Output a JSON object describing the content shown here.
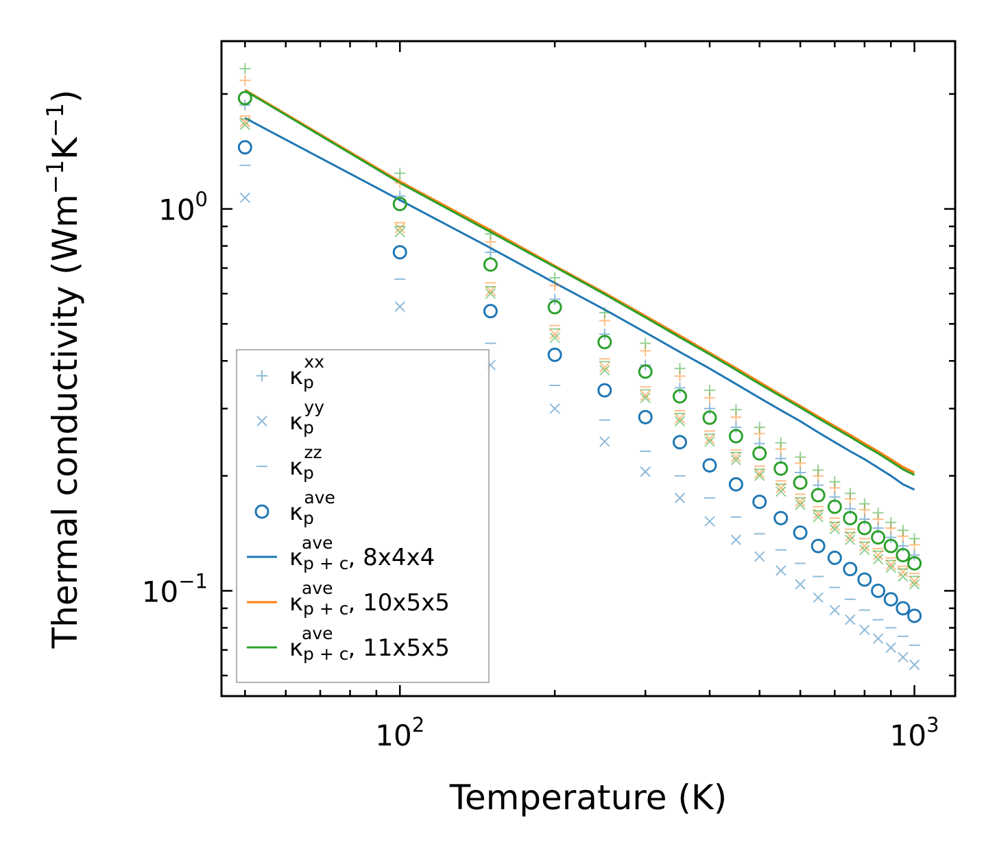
{
  "chart_data": {
    "type": "scatter",
    "xlabel": "Temperature (K)",
    "ylabel_parts": [
      "Thermal conductivity (Wm",
      "−1",
      "K",
      "−1",
      ")"
    ],
    "x_scale": "log",
    "y_scale": "log",
    "xlim": [
      45,
      1200
    ],
    "ylim": [
      0.053,
      2.75
    ],
    "x_ticks": [
      {
        "base": "10",
        "exp": "2",
        "value": 100
      },
      {
        "base": "10",
        "exp": "3",
        "value": 1000
      }
    ],
    "y_ticks": [
      {
        "base": "10",
        "exp": "0",
        "value": 1
      },
      {
        "base": "10",
        "exp": "−1",
        "value": 0.1
      }
    ],
    "legend_position": "lower-left",
    "x": [
      50,
      100,
      150,
      200,
      250,
      300,
      350,
      400,
      450,
      500,
      550,
      600,
      650,
      700,
      750,
      800,
      850,
      900,
      950,
      1000
    ],
    "colors": {
      "blue": "#1f77b4",
      "orange": "#ff7f0e",
      "green": "#2ca02c"
    },
    "marker_series": [
      {
        "name": "xx",
        "marker": "plus",
        "sup": "xx",
        "blue": [
          1.87,
          1.08,
          0.77,
          0.58,
          0.47,
          0.39,
          0.34,
          0.3,
          0.268,
          0.243,
          0.222,
          0.204,
          0.189,
          0.176,
          0.164,
          0.154,
          0.146,
          0.138,
          0.131,
          0.124
        ],
        "orange": [
          2.17,
          1.17,
          0.82,
          0.63,
          0.51,
          0.425,
          0.365,
          0.32,
          0.285,
          0.258,
          0.235,
          0.216,
          0.2,
          0.186,
          0.174,
          0.163,
          0.154,
          0.146,
          0.139,
          0.132
        ],
        "green": [
          2.33,
          1.24,
          0.86,
          0.66,
          0.535,
          0.445,
          0.382,
          0.335,
          0.298,
          0.268,
          0.244,
          0.224,
          0.207,
          0.193,
          0.18,
          0.169,
          0.16,
          0.151,
          0.144,
          0.137
        ]
      },
      {
        "name": "yy",
        "marker": "cross",
        "sup": "yy",
        "blue": [
          1.07,
          0.555,
          0.39,
          0.3,
          0.246,
          0.205,
          0.175,
          0.152,
          0.136,
          0.123,
          0.113,
          0.104,
          0.096,
          0.089,
          0.084,
          0.079,
          0.075,
          0.071,
          0.067,
          0.064
        ],
        "orange": [
          1.69,
          0.89,
          0.61,
          0.47,
          0.385,
          0.325,
          0.283,
          0.25,
          0.224,
          0.203,
          0.186,
          0.171,
          0.159,
          0.148,
          0.139,
          0.131,
          0.124,
          0.117,
          0.112,
          0.106
        ],
        "green": [
          1.66,
          0.87,
          0.6,
          0.46,
          0.378,
          0.32,
          0.278,
          0.246,
          0.22,
          0.2,
          0.182,
          0.168,
          0.156,
          0.145,
          0.136,
          0.128,
          0.121,
          0.115,
          0.109,
          0.104
        ]
      },
      {
        "name": "zz",
        "marker": "dash",
        "sup": "zz",
        "blue": [
          1.3,
          0.655,
          0.445,
          0.345,
          0.28,
          0.232,
          0.2,
          0.175,
          0.156,
          0.141,
          0.128,
          0.118,
          0.109,
          0.102,
          0.095,
          0.089,
          0.084,
          0.08,
          0.076,
          0.072
        ],
        "orange": [
          1.75,
          0.92,
          0.64,
          0.495,
          0.405,
          0.342,
          0.296,
          0.262,
          0.234,
          0.212,
          0.194,
          0.179,
          0.166,
          0.155,
          0.145,
          0.137,
          0.129,
          0.122,
          0.116,
          0.111
        ],
        "green": [
          1.72,
          0.9,
          0.625,
          0.485,
          0.398,
          0.336,
          0.291,
          0.257,
          0.23,
          0.208,
          0.19,
          0.175,
          0.162,
          0.151,
          0.142,
          0.134,
          0.127,
          0.12,
          0.114,
          0.109
        ]
      }
    ],
    "ave_circles": {
      "name": "ave",
      "sup": "ave",
      "blue": [
        1.45,
        0.77,
        0.54,
        0.415,
        0.335,
        0.285,
        0.245,
        0.213,
        0.19,
        0.171,
        0.155,
        0.142,
        0.131,
        0.122,
        0.114,
        0.107,
        0.1,
        0.095,
        0.09,
        0.086
      ],
      "green": [
        1.95,
        1.03,
        0.715,
        0.553,
        0.448,
        0.375,
        0.323,
        0.284,
        0.254,
        0.229,
        0.209,
        0.192,
        0.178,
        0.166,
        0.155,
        0.146,
        0.138,
        0.131,
        0.124,
        0.118
      ]
    },
    "lines": [
      {
        "name": "8x4x4",
        "color": "blue",
        "values": [
          1.73,
          1.055,
          0.79,
          0.64,
          0.545,
          0.475,
          0.422,
          0.382,
          0.348,
          0.32,
          0.297,
          0.278,
          0.26,
          0.245,
          0.232,
          0.221,
          0.21,
          0.2,
          0.19,
          0.184
        ]
      },
      {
        "name": "10x5x5",
        "color": "orange",
        "values": [
          2.05,
          1.18,
          0.88,
          0.71,
          0.603,
          0.525,
          0.466,
          0.42,
          0.383,
          0.352,
          0.326,
          0.305,
          0.286,
          0.27,
          0.256,
          0.243,
          0.232,
          0.221,
          0.211,
          0.204
        ]
      },
      {
        "name": "11x5x5",
        "color": "green",
        "values": [
          2.04,
          1.17,
          0.87,
          0.705,
          0.598,
          0.52,
          0.461,
          0.416,
          0.379,
          0.348,
          0.323,
          0.302,
          0.283,
          0.267,
          0.253,
          0.24,
          0.229,
          0.218,
          0.208,
          0.201
        ]
      }
    ],
    "legend": [
      {
        "kind": "plus",
        "symbol": "κ",
        "sub": "p",
        "sup": "xx",
        "text": ""
      },
      {
        "kind": "cross",
        "symbol": "κ",
        "sub": "p",
        "sup": "yy",
        "text": ""
      },
      {
        "kind": "dash",
        "symbol": "κ",
        "sub": "p",
        "sup": "zz",
        "text": ""
      },
      {
        "kind": "circle",
        "symbol": "κ",
        "sub": "p",
        "sup": "ave",
        "text": ""
      },
      {
        "kind": "line-blue",
        "symbol": "κ",
        "sub": "p + c",
        "sup": "ave",
        "text": ", 8x4x4"
      },
      {
        "kind": "line-orange",
        "symbol": "κ",
        "sub": "p + c",
        "sup": "ave",
        "text": ", 10x5x5"
      },
      {
        "kind": "line-green",
        "symbol": "κ",
        "sub": "p + c",
        "sup": "ave",
        "text": ", 11x5x5"
      }
    ]
  }
}
